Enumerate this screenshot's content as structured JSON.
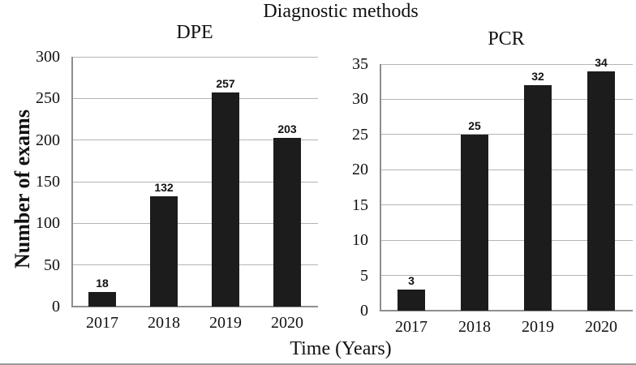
{
  "figure": {
    "title": "Diagnostic methods",
    "x_axis_label": "Time (Years)",
    "y_axis_label": "Number of exams"
  },
  "chart_data": [
    {
      "type": "bar",
      "title": "DPE",
      "categories": [
        "2017",
        "2018",
        "2019",
        "2020"
      ],
      "values": [
        18,
        132,
        257,
        203
      ],
      "data_labels": [
        "18",
        "132",
        "257",
        "203"
      ],
      "ylim": [
        0,
        300
      ],
      "yticks": [
        0,
        50,
        100,
        150,
        200,
        250,
        300
      ],
      "grid": true,
      "legend": "none"
    },
    {
      "type": "bar",
      "title": "PCR",
      "categories": [
        "2017",
        "2018",
        "2019",
        "2020"
      ],
      "values": [
        3,
        25,
        32,
        34
      ],
      "data_labels": [
        "3",
        "25",
        "32",
        "34"
      ],
      "ylim": [
        0,
        35
      ],
      "yticks": [
        0,
        5,
        10,
        15,
        20,
        25,
        30,
        35
      ],
      "grid": true,
      "legend": "none"
    }
  ],
  "colors": {
    "bar": "#1c1c1c",
    "gridline": "#b4b4b4",
    "axis": "#8e8e8e",
    "text": "#111111",
    "background": "#ffffff",
    "bottom_rule": "#9a9a9a"
  }
}
